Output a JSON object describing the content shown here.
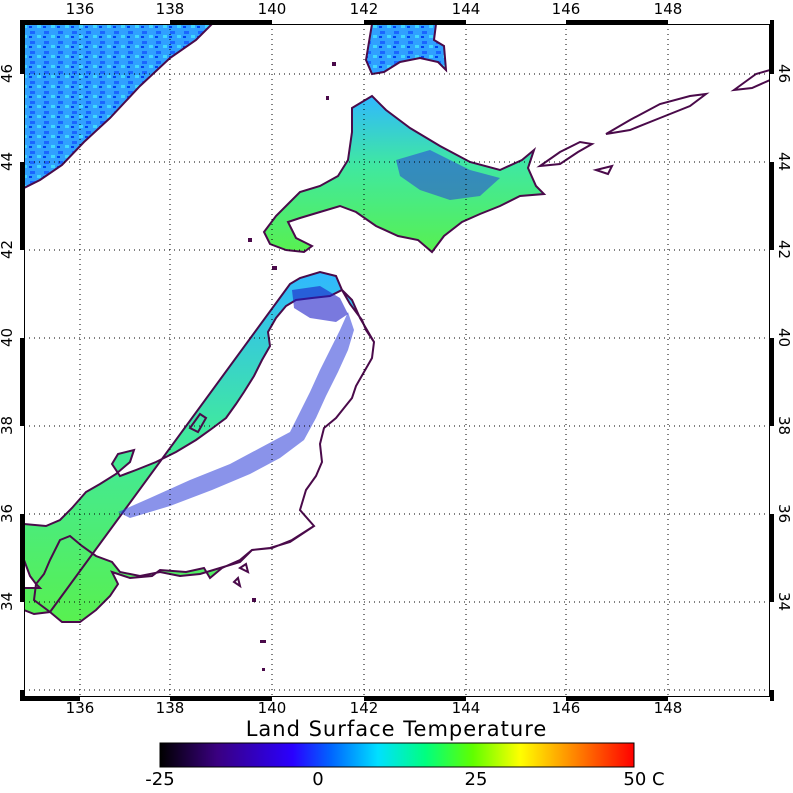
{
  "map": {
    "top_lon_labels": [
      "136",
      "138",
      "140",
      "142",
      "144",
      "146",
      "148"
    ],
    "bottom_lon_labels": [
      "136",
      "138",
      "140",
      "142",
      "144",
      "146",
      "148"
    ],
    "left_lat_labels": [
      "46",
      "44",
      "42",
      "40",
      "38",
      "36",
      "34"
    ],
    "right_lat_labels": [
      "46",
      "44",
      "42",
      "40",
      "38",
      "36",
      "34"
    ],
    "lon_range": [
      135,
      150
    ],
    "lat_range": [
      32,
      47
    ],
    "grid": true
  },
  "colorbar": {
    "title": "Land Surface Temperature",
    "ticks": [
      "-25",
      "0",
      "25",
      "50 C"
    ],
    "range": [
      -25,
      50
    ],
    "colors": [
      "#000000",
      "#3a0080",
      "#2a00ff",
      "#00c8ff",
      "#00ff80",
      "#80ff00",
      "#ffff00",
      "#ff8000",
      "#ff0000"
    ]
  },
  "colors": {
    "coastline": "#4a0a4a",
    "land_cool": "#1a7cff",
    "land_warm": "#3cf06e",
    "land_cold": "#2030d0"
  }
}
